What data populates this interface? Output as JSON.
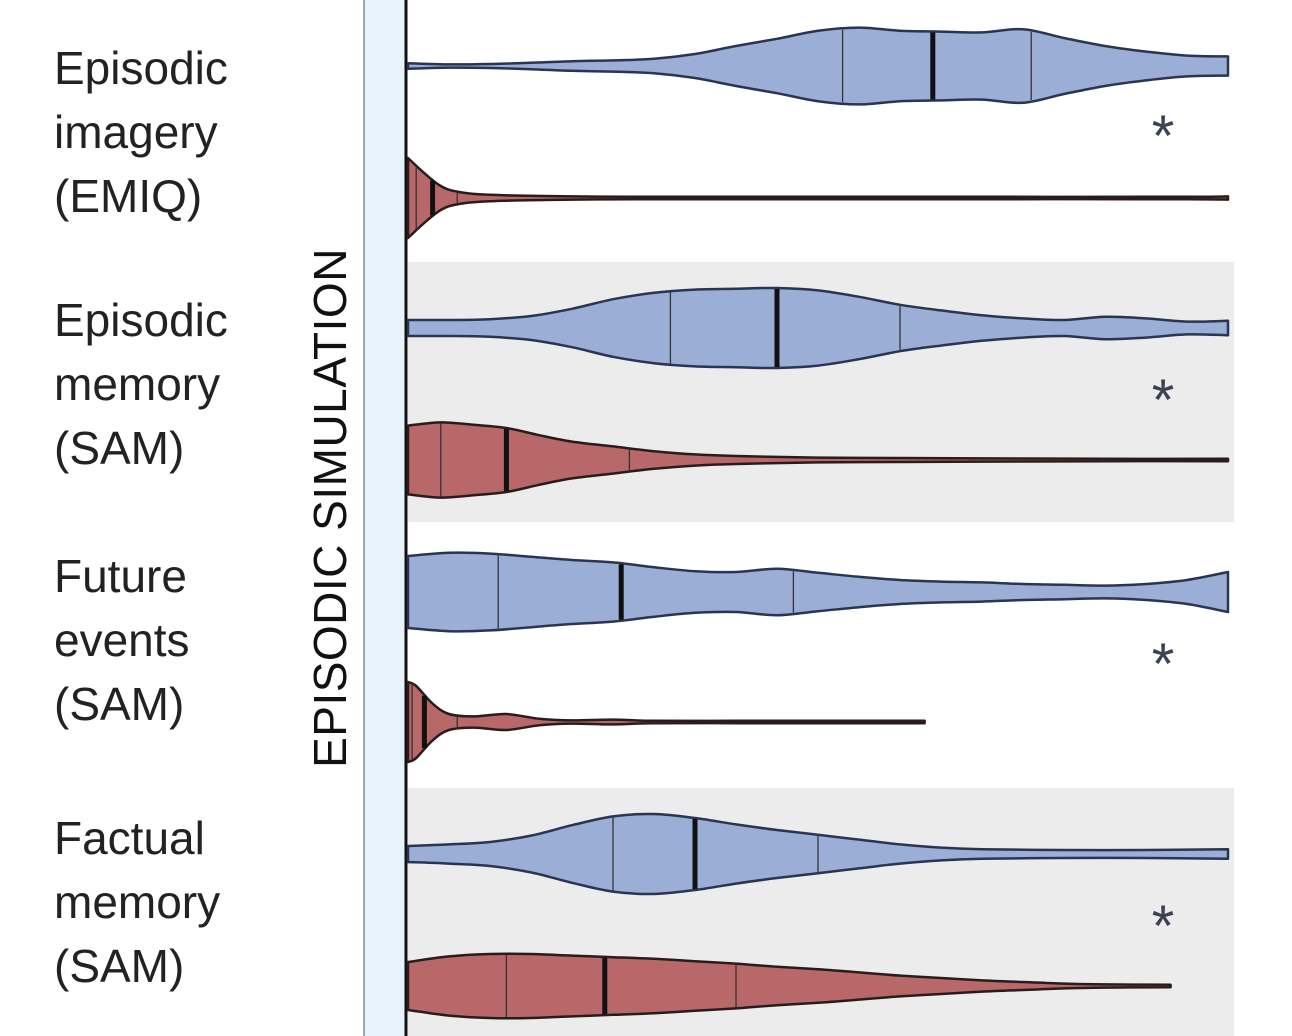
{
  "section_label": "EPISODIC SIMULATION",
  "colors": {
    "group_a_fill": "#9aaed6",
    "group_a_stroke": "#2a3552",
    "group_b_fill": "#b86868",
    "group_b_stroke": "#2a1c1c",
    "band_shade": "#ececec",
    "axis_strip": "#e6f3fb",
    "asterisk": "#3a4254"
  },
  "chart_data": {
    "type": "violin",
    "orientation": "horizontal",
    "title": "",
    "xlabel": "",
    "ylabel": "EPISODIC SIMULATION",
    "xlim": [
      0,
      1
    ],
    "significance_marker": "*",
    "rows": [
      {
        "label_lines": [
          "Episodic",
          "imagery",
          "(EMIQ)"
        ],
        "shaded": false,
        "significant": true,
        "violins": [
          {
            "group": "a",
            "min": 0.0,
            "max": 1.0,
            "q1": 0.53,
            "median": 0.64,
            "q3": 0.76,
            "density": [
              [
                0.0,
                0.07
              ],
              [
                0.05,
                0.04
              ],
              [
                0.1,
                0.05
              ],
              [
                0.15,
                0.08
              ],
              [
                0.2,
                0.12
              ],
              [
                0.25,
                0.14
              ],
              [
                0.3,
                0.18
              ],
              [
                0.35,
                0.3
              ],
              [
                0.4,
                0.5
              ],
              [
                0.45,
                0.68
              ],
              [
                0.5,
                0.88
              ],
              [
                0.55,
                0.96
              ],
              [
                0.6,
                0.88
              ],
              [
                0.65,
                0.86
              ],
              [
                0.7,
                0.84
              ],
              [
                0.75,
                0.92
              ],
              [
                0.8,
                0.7
              ],
              [
                0.85,
                0.5
              ],
              [
                0.9,
                0.36
              ],
              [
                0.95,
                0.26
              ],
              [
                1.0,
                0.24
              ]
            ]
          },
          {
            "group": "b",
            "min": 0.0,
            "max": 1.0,
            "q1": 0.01,
            "median": 0.03,
            "q3": 0.06,
            "density": [
              [
                0.0,
                1.0
              ],
              [
                0.02,
                0.62
              ],
              [
                0.04,
                0.3
              ],
              [
                0.06,
                0.16
              ],
              [
                0.1,
                0.08
              ],
              [
                0.2,
                0.04
              ],
              [
                0.3,
                0.03
              ],
              [
                0.45,
                0.02
              ],
              [
                0.7,
                0.02
              ],
              [
                0.95,
                0.02
              ],
              [
                1.0,
                0.04
              ]
            ]
          }
        ]
      },
      {
        "label_lines": [
          "Episodic",
          "memory",
          "(SAM)"
        ],
        "shaded": true,
        "significant": true,
        "violins": [
          {
            "group": "a",
            "min": 0.0,
            "max": 1.0,
            "q1": 0.32,
            "median": 0.45,
            "q3": 0.6,
            "density": [
              [
                0.0,
                0.2
              ],
              [
                0.05,
                0.2
              ],
              [
                0.1,
                0.22
              ],
              [
                0.15,
                0.3
              ],
              [
                0.2,
                0.48
              ],
              [
                0.25,
                0.72
              ],
              [
                0.3,
                0.88
              ],
              [
                0.35,
                0.96
              ],
              [
                0.4,
                0.98
              ],
              [
                0.45,
                1.0
              ],
              [
                0.5,
                0.94
              ],
              [
                0.55,
                0.78
              ],
              [
                0.6,
                0.58
              ],
              [
                0.65,
                0.44
              ],
              [
                0.7,
                0.32
              ],
              [
                0.75,
                0.24
              ],
              [
                0.8,
                0.2
              ],
              [
                0.85,
                0.28
              ],
              [
                0.9,
                0.24
              ],
              [
                0.95,
                0.16
              ],
              [
                1.0,
                0.18
              ]
            ]
          },
          {
            "group": "b",
            "min": 0.0,
            "max": 1.0,
            "q1": 0.04,
            "median": 0.12,
            "q3": 0.27,
            "density": [
              [
                0.0,
                0.86
              ],
              [
                0.04,
                0.94
              ],
              [
                0.08,
                0.88
              ],
              [
                0.12,
                0.8
              ],
              [
                0.16,
                0.62
              ],
              [
                0.2,
                0.46
              ],
              [
                0.25,
                0.34
              ],
              [
                0.3,
                0.22
              ],
              [
                0.35,
                0.14
              ],
              [
                0.4,
                0.1
              ],
              [
                0.5,
                0.06
              ],
              [
                0.6,
                0.05
              ],
              [
                0.7,
                0.04
              ],
              [
                0.85,
                0.03
              ],
              [
                1.0,
                0.03
              ]
            ]
          }
        ]
      },
      {
        "label_lines": [
          "Future",
          "events",
          "(SAM)"
        ],
        "shaded": false,
        "significant": true,
        "violins": [
          {
            "group": "a",
            "min": 0.0,
            "max": 1.0,
            "q1": 0.11,
            "median": 0.26,
            "q3": 0.47,
            "density": [
              [
                0.0,
                0.9
              ],
              [
                0.05,
                0.98
              ],
              [
                0.1,
                0.96
              ],
              [
                0.15,
                0.88
              ],
              [
                0.2,
                0.8
              ],
              [
                0.25,
                0.74
              ],
              [
                0.3,
                0.62
              ],
              [
                0.35,
                0.52
              ],
              [
                0.4,
                0.5
              ],
              [
                0.45,
                0.58
              ],
              [
                0.5,
                0.48
              ],
              [
                0.55,
                0.38
              ],
              [
                0.6,
                0.3
              ],
              [
                0.65,
                0.26
              ],
              [
                0.7,
                0.24
              ],
              [
                0.75,
                0.2
              ],
              [
                0.8,
                0.18
              ],
              [
                0.85,
                0.16
              ],
              [
                0.9,
                0.2
              ],
              [
                0.95,
                0.3
              ],
              [
                1.0,
                0.5
              ]
            ]
          },
          {
            "group": "b",
            "min": 0.0,
            "max": 0.63,
            "q1": 0.005,
            "median": 0.02,
            "q3": 0.06,
            "density": [
              [
                0.0,
                1.0
              ],
              [
                0.01,
                0.9
              ],
              [
                0.03,
                0.46
              ],
              [
                0.05,
                0.2
              ],
              [
                0.08,
                0.14
              ],
              [
                0.12,
                0.2
              ],
              [
                0.16,
                0.08
              ],
              [
                0.2,
                0.04
              ],
              [
                0.25,
                0.06
              ],
              [
                0.3,
                0.03
              ],
              [
                0.4,
                0.02
              ],
              [
                0.5,
                0.02
              ],
              [
                0.63,
                0.02
              ]
            ]
          }
        ]
      },
      {
        "label_lines": [
          "Factual",
          "memory",
          "(SAM)"
        ],
        "shaded": true,
        "significant": true,
        "violins": [
          {
            "group": "a",
            "min": 0.0,
            "max": 1.0,
            "q1": 0.25,
            "median": 0.35,
            "q3": 0.5,
            "density": [
              [
                0.0,
                0.2
              ],
              [
                0.05,
                0.24
              ],
              [
                0.1,
                0.3
              ],
              [
                0.15,
                0.46
              ],
              [
                0.2,
                0.72
              ],
              [
                0.25,
                0.94
              ],
              [
                0.3,
                1.0
              ],
              [
                0.35,
                0.9
              ],
              [
                0.4,
                0.74
              ],
              [
                0.45,
                0.6
              ],
              [
                0.5,
                0.48
              ],
              [
                0.55,
                0.36
              ],
              [
                0.6,
                0.24
              ],
              [
                0.65,
                0.16
              ],
              [
                0.7,
                0.12
              ],
              [
                0.8,
                0.1
              ],
              [
                0.9,
                0.1
              ],
              [
                1.0,
                0.12
              ]
            ]
          },
          {
            "group": "b",
            "min": 0.0,
            "max": 0.93,
            "q1": 0.12,
            "median": 0.24,
            "q3": 0.4,
            "density": [
              [
                0.0,
                0.6
              ],
              [
                0.05,
                0.74
              ],
              [
                0.1,
                0.8
              ],
              [
                0.15,
                0.8
              ],
              [
                0.2,
                0.76
              ],
              [
                0.25,
                0.72
              ],
              [
                0.3,
                0.68
              ],
              [
                0.35,
                0.62
              ],
              [
                0.4,
                0.56
              ],
              [
                0.45,
                0.48
              ],
              [
                0.5,
                0.42
              ],
              [
                0.55,
                0.34
              ],
              [
                0.6,
                0.26
              ],
              [
                0.65,
                0.2
              ],
              [
                0.7,
                0.14
              ],
              [
                0.75,
                0.1
              ],
              [
                0.8,
                0.06
              ],
              [
                0.85,
                0.04
              ],
              [
                0.93,
                0.02
              ]
            ]
          }
        ]
      }
    ]
  }
}
